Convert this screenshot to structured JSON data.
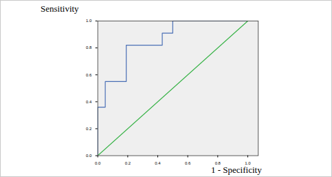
{
  "chart_data": {
    "type": "line",
    "x_label": "1 - Specificity",
    "y_label": "Sensitivity",
    "xlim": [
      0,
      1.07
    ],
    "ylim": [
      0,
      1.0
    ],
    "xticks": [
      {
        "value": 0,
        "label": "0.0"
      },
      0.2,
      0.4,
      0.6,
      0.8,
      {
        "value": 1,
        "label": "1.0"
      }
    ],
    "yticks": [
      {
        "value": 0,
        "label": "0.0"
      },
      0.2,
      0.4,
      0.6,
      0.8,
      {
        "value": 1,
        "label": "1.0"
      }
    ],
    "grid": false,
    "series": [
      {
        "color": "#4a6fb5",
        "x": [
          0,
          0,
          0.05,
          0.05,
          0.19,
          0.19,
          0.43,
          0.43,
          0.5,
          0.5,
          1.0
        ],
        "values": [
          0,
          0.36,
          0.36,
          0.55,
          0.55,
          0.82,
          0.82,
          0.91,
          0.91,
          1.0,
          1.0
        ]
      },
      {
        "color": "#3cb44b",
        "x": [
          0,
          1
        ],
        "values": [
          0,
          1
        ]
      }
    ]
  }
}
